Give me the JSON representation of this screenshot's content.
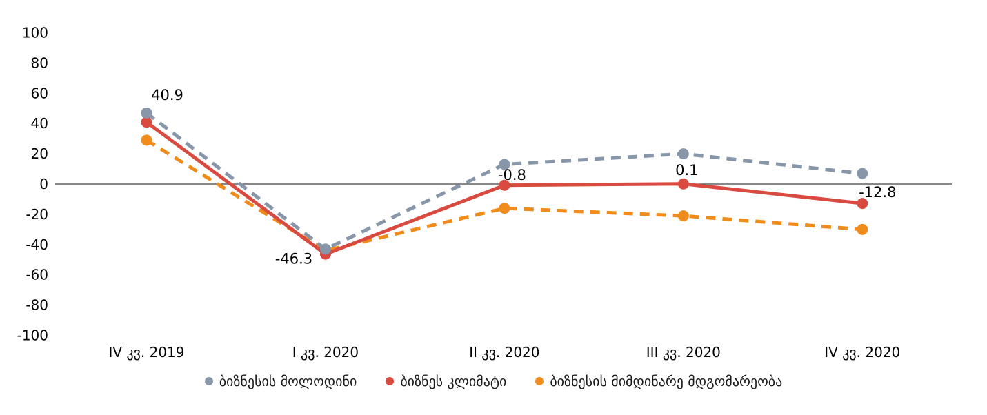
{
  "chart_data": {
    "type": "line",
    "title": "",
    "categories": [
      "IV კვ. 2019",
      "I კვ. 2020",
      "II კვ. 2020",
      "III კვ. 2020",
      "IV კვ. 2020"
    ],
    "series": [
      {
        "name": "ბიზნესის მოლოდინი",
        "color": "#8796a8",
        "line_style": "dashed",
        "marker": "circle",
        "values": [
          47,
          -43,
          13,
          20,
          7
        ]
      },
      {
        "name": "ბიზნეს კლიმატი",
        "color": "#d94a40",
        "line_style": "solid",
        "marker": "circle",
        "values": [
          40.9,
          -46.3,
          -0.8,
          0.1,
          -12.8
        ],
        "point_labels": [
          "40.9",
          "-46.3",
          "-0.8",
          "0.1",
          "-12.8"
        ]
      },
      {
        "name": "ბიზნესის მიმდინარე მდგომარეობა",
        "color": "#f08c1c",
        "line_style": "dashed",
        "marker": "circle",
        "values": [
          29,
          -44,
          -16,
          -21,
          -30
        ]
      }
    ],
    "xlabel": "",
    "ylabel": "",
    "ylim": [
      -100,
      100
    ],
    "yticks": [
      100,
      80,
      60,
      40,
      20,
      0,
      -20,
      -40,
      -60,
      -80,
      -100
    ],
    "grid": false,
    "legend_position": "bottom",
    "axis_line_color": "#404040",
    "text_color": "#000000",
    "background_color": "#ffffff"
  }
}
